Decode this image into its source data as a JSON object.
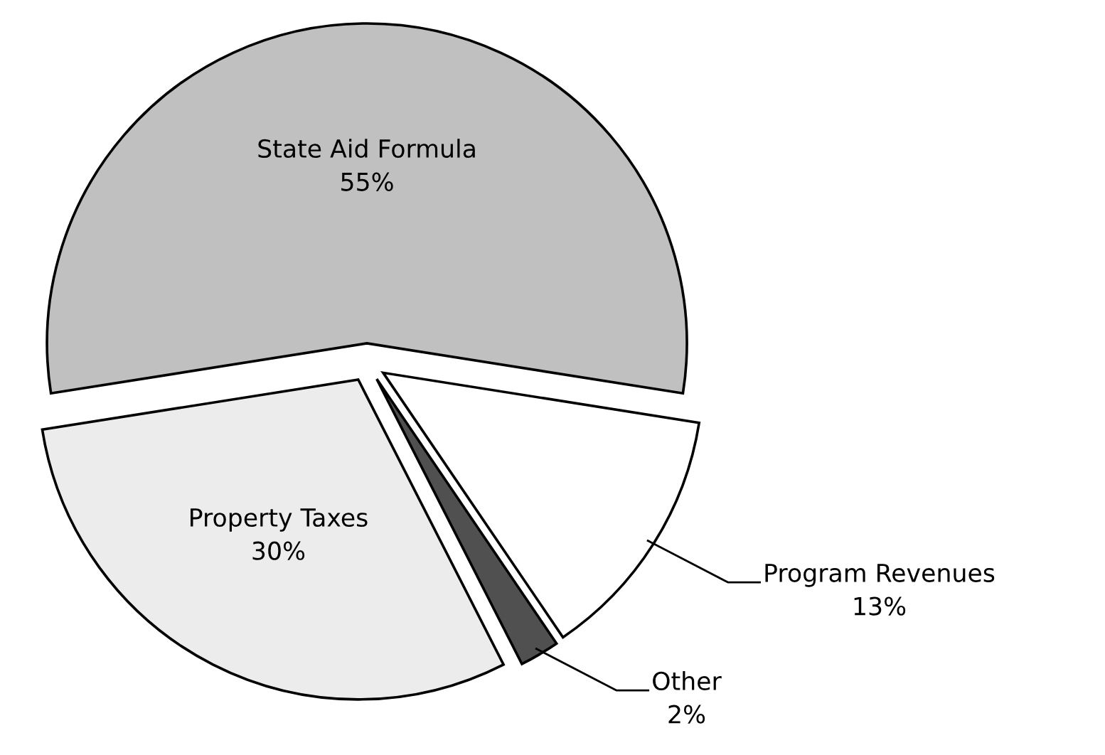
{
  "chart_data": {
    "type": "pie",
    "categories": [
      "State Aid Formula",
      "Program Revenues",
      "Other",
      "Property Taxes"
    ],
    "values": [
      55,
      13,
      2,
      30
    ],
    "value_labels": [
      "55%",
      "13%",
      "2%",
      "30%"
    ],
    "colors": [
      "#c0c0c0",
      "#ffffff",
      "#505050",
      "#ececec"
    ],
    "legend": false
  }
}
